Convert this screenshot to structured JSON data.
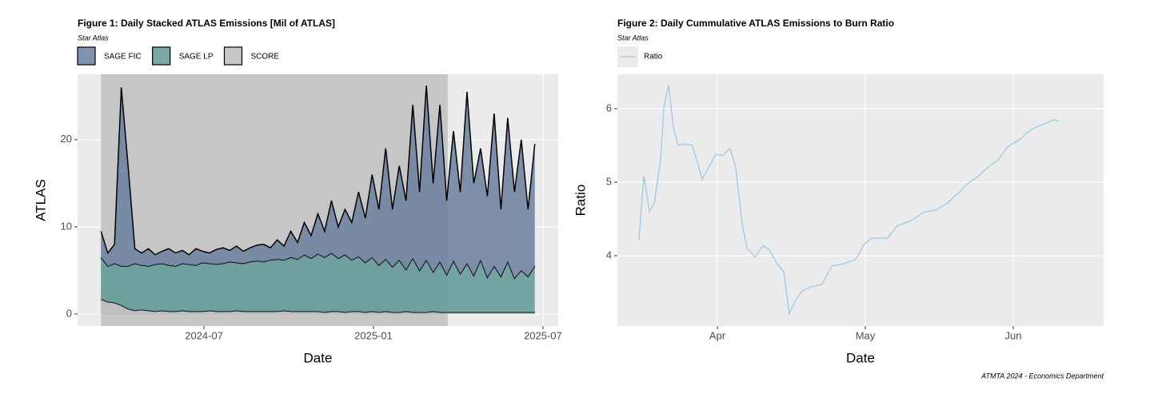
{
  "chart_data": [
    {
      "type": "area",
      "stacked": true,
      "title": "Figure 1: Daily Stacked ATLAS Emissions [Mil of ATLAS]",
      "subtitle": "Star Atlas",
      "x_label": "Date",
      "y_label": "ATLAS",
      "legend": "top",
      "grid": true,
      "highlight_xrange": [
        2024.196,
        2025.219
      ],
      "highlight_color": "#c6c6c6",
      "x": [
        2024.196,
        2024.216,
        2024.236,
        2024.256,
        2024.276,
        2024.296,
        2024.316,
        2024.336,
        2024.356,
        2024.376,
        2024.396,
        2024.416,
        2024.436,
        2024.456,
        2024.476,
        2024.496,
        2024.516,
        2024.536,
        2024.556,
        2024.576,
        2024.596,
        2024.616,
        2024.636,
        2024.656,
        2024.676,
        2024.696,
        2024.716,
        2024.736,
        2024.756,
        2024.776,
        2024.796,
        2024.816,
        2024.836,
        2024.856,
        2024.876,
        2024.896,
        2024.916,
        2024.936,
        2024.956,
        2024.976,
        2024.996,
        2025.016,
        2025.036,
        2025.056,
        2025.076,
        2025.096,
        2025.116,
        2025.136,
        2025.156,
        2025.176,
        2025.196,
        2025.216,
        2025.236,
        2025.256,
        2025.276,
        2025.296,
        2025.316,
        2025.336,
        2025.356,
        2025.376,
        2025.396,
        2025.416,
        2025.436,
        2025.456,
        2025.476
      ],
      "series": [
        {
          "name": "SCORE",
          "color": "#bdbdbd",
          "values": [
            1.7,
            1.4,
            1.3,
            1.0,
            0.6,
            0.4,
            0.5,
            0.4,
            0.3,
            0.4,
            0.3,
            0.3,
            0.4,
            0.3,
            0.3,
            0.3,
            0.4,
            0.3,
            0.3,
            0.3,
            0.4,
            0.3,
            0.3,
            0.3,
            0.3,
            0.3,
            0.3,
            0.4,
            0.3,
            0.3,
            0.3,
            0.3,
            0.3,
            0.2,
            0.3,
            0.3,
            0.2,
            0.3,
            0.3,
            0.2,
            0.3,
            0.2,
            0.3,
            0.2,
            0.2,
            0.3,
            0.2,
            0.2,
            0.2,
            0.3,
            0.2,
            0.2,
            0.2,
            0.2,
            0.2,
            0.2,
            0.2,
            0.2,
            0.2,
            0.2,
            0.2,
            0.2,
            0.2,
            0.2,
            0.2
          ]
        },
        {
          "name": "SAGE LP",
          "color": "#5f9996",
          "values": [
            4.8,
            4.1,
            4.5,
            4.5,
            4.9,
            5.4,
            5.1,
            5.1,
            5.4,
            5.4,
            5.3,
            5.2,
            5.4,
            5.4,
            5.3,
            5.6,
            5.4,
            5.4,
            5.5,
            5.7,
            5.5,
            5.5,
            5.7,
            5.8,
            5.7,
            5.9,
            6.0,
            5.8,
            6.2,
            6.0,
            6.5,
            6.1,
            6.6,
            6.3,
            6.7,
            6.1,
            6.6,
            5.9,
            6.3,
            5.7,
            6.2,
            5.4,
            6.0,
            5.2,
            6.0,
            4.8,
            6.2,
            4.8,
            6.0,
            4.5,
            5.8,
            4.3,
            5.9,
            4.4,
            5.6,
            4.2,
            6.0,
            4.0,
            5.3,
            4.1,
            5.8,
            3.9,
            4.8,
            4.1,
            5.3
          ]
        },
        {
          "name": "SAGE FIC",
          "color": "#6b7f9e",
          "values": [
            3.0,
            1.5,
            2.2,
            20.5,
            11.5,
            1.7,
            1.4,
            2.0,
            1.1,
            1.4,
            1.9,
            1.5,
            1.5,
            1.1,
            1.9,
            1.3,
            1.2,
            1.7,
            1.8,
            1.3,
            1.9,
            1.4,
            1.6,
            1.8,
            2.0,
            1.4,
            2.2,
            1.6,
            3.0,
            1.9,
            3.7,
            2.6,
            4.6,
            3.0,
            6.0,
            3.6,
            5.2,
            4.3,
            7.4,
            5.1,
            9.5,
            6.4,
            12.7,
            6.6,
            10.8,
            7.9,
            17.6,
            9.0,
            20.0,
            10.2,
            18.0,
            8.5,
            14.9,
            9.4,
            19.7,
            10.6,
            12.8,
            9.3,
            17.5,
            7.7,
            16.5,
            9.9,
            15.0,
            7.7,
            14.0
          ]
        }
      ],
      "xlim": [
        2024.127,
        2025.545
      ],
      "xticks": [
        {
          "value": 2024.5,
          "label": "2024-07"
        },
        {
          "value": 2025.0,
          "label": "2025-01"
        },
        {
          "value": 2025.5,
          "label": "2025-07"
        }
      ],
      "ylim": [
        -1.38,
        27.5
      ],
      "yticks": [
        0,
        10,
        20
      ]
    },
    {
      "type": "line",
      "title": "Figure 2: Daily Cummulative ATLAS Emissions to Burn Ratio",
      "subtitle": "Star Atlas",
      "x_label": "Date",
      "y_label": "Ratio",
      "legend": "top",
      "grid": true,
      "caption": "ATMTA 2024 - Economics Department",
      "x": [
        3.47,
        3.503,
        3.541,
        3.573,
        3.616,
        3.638,
        3.67,
        3.703,
        3.735,
        3.778,
        3.832,
        3.897,
        3.941,
        3.989,
        4.032,
        4.086,
        4.124,
        4.168,
        4.2,
        4.254,
        4.308,
        4.351,
        4.405,
        4.449,
        4.486,
        4.53,
        4.568,
        4.622,
        4.708,
        4.773,
        4.854,
        4.935,
        4.989,
        5.043,
        5.151,
        5.216,
        5.314,
        5.395,
        5.476,
        5.557,
        5.638,
        5.692,
        5.757,
        5.827,
        5.897,
        5.962,
        6.043,
        6.124,
        6.205,
        6.276,
        6.308
      ],
      "series": [
        {
          "name": "Ratio",
          "color": "#a6cee3",
          "values": [
            4.22,
            5.09,
            4.6,
            4.71,
            5.3,
            6.01,
            6.32,
            5.74,
            5.5,
            5.52,
            5.5,
            5.04,
            5.2,
            5.38,
            5.36,
            5.46,
            5.2,
            4.43,
            4.11,
            3.98,
            4.14,
            4.08,
            3.89,
            3.78,
            3.21,
            3.4,
            3.51,
            3.57,
            3.61,
            3.86,
            3.89,
            3.95,
            4.15,
            4.24,
            4.24,
            4.41,
            4.48,
            4.59,
            4.62,
            4.72,
            4.87,
            4.98,
            5.07,
            5.2,
            5.3,
            5.48,
            5.58,
            5.72,
            5.79,
            5.85,
            5.83
          ]
        }
      ],
      "xlim": [
        3.324,
        6.611
      ],
      "xticks": [
        {
          "value": 4,
          "label": "Apr"
        },
        {
          "value": 5,
          "label": "May"
        },
        {
          "value": 6,
          "label": "Jun"
        }
      ],
      "ylim": [
        3.043,
        6.467
      ],
      "yticks": [
        4,
        5,
        6
      ]
    }
  ]
}
